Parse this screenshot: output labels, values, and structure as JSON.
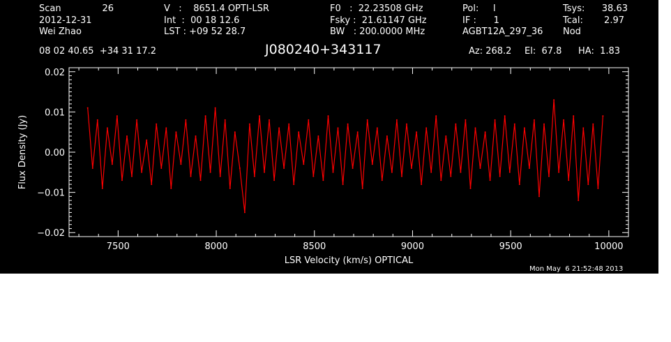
{
  "header": {
    "scan_label": "Scan",
    "scan_number": "26",
    "date": "2012-12-31",
    "observer": "Wei Zhao",
    "velocity": "V   :    8651.4 OPTI-LSR",
    "integration": "Int  :  00 18 12.6",
    "lst": "LST : +09 52 28.7",
    "f0": "F0   :  22.23508 GHz",
    "fsky": "Fsky :  21.61147 GHz",
    "bw": "BW   : 200.0000 MHz",
    "pol": "Pol:     l",
    "if": "IF :      1",
    "project": "AGBT12A_297_36",
    "tsys_label": "Tsys:",
    "tsys_value": "38.63",
    "tcal_label": "Tcal:",
    "tcal_value": "2.97",
    "nod": "Nod",
    "coordinates": "08 02 40.65  +34 31 17.2",
    "source": "J080240+343117",
    "az": "Az: 268.2",
    "el": "El:  67.8",
    "ha": "HA:  1.83"
  },
  "footer": {
    "timestamp": "Mon May  6 21:52:48 2013"
  },
  "colors": {
    "background": "#000000",
    "axes": "#ffffff",
    "trace": "#ff0000"
  },
  "chart_data": {
    "type": "line",
    "title": "J080240+343117",
    "xlabel": "LSR Velocity (km/s) OPTICAL",
    "ylabel": "Flux Density (Jy)",
    "xlim": [
      7250,
      10100
    ],
    "ylim": [
      -0.021,
      0.021
    ],
    "xticks": [
      7500,
      8000,
      8500,
      9000,
      9500,
      10000
    ],
    "xtick_labels": [
      "7500",
      "8000",
      "8500",
      "9000",
      "9500",
      "10000"
    ],
    "yticks": [
      -0.02,
      -0.01,
      0.0,
      0.01,
      0.02
    ],
    "ytick_labels": [
      "−0.02",
      "−0.01",
      "0.00",
      "0.01",
      "0.02"
    ],
    "grid": false,
    "series": [
      {
        "color": "#ff0000",
        "x": [
          7345,
          7370,
          7395,
          7420,
          7445,
          7470,
          7495,
          7520,
          7545,
          7570,
          7595,
          7620,
          7645,
          7670,
          7695,
          7720,
          7745,
          7770,
          7795,
          7820,
          7845,
          7870,
          7895,
          7920,
          7945,
          7970,
          7995,
          8020,
          8045,
          8070,
          8095,
          8120,
          8145,
          8170,
          8195,
          8220,
          8245,
          8270,
          8295,
          8320,
          8345,
          8370,
          8395,
          8420,
          8445,
          8470,
          8495,
          8520,
          8545,
          8570,
          8595,
          8620,
          8645,
          8670,
          8695,
          8720,
          8745,
          8770,
          8795,
          8820,
          8845,
          8870,
          8895,
          8920,
          8945,
          8970,
          8995,
          9020,
          9045,
          9070,
          9095,
          9120,
          9145,
          9170,
          9195,
          9220,
          9245,
          9270,
          9295,
          9320,
          9345,
          9370,
          9395,
          9420,
          9445,
          9470,
          9495,
          9520,
          9545,
          9570,
          9595,
          9620,
          9645,
          9670,
          9695,
          9720,
          9745,
          9770,
          9795,
          9820,
          9845,
          9870,
          9895,
          9920,
          9945,
          9970
        ],
        "y": [
          0.011,
          -0.004,
          0.008,
          -0.009,
          0.006,
          -0.003,
          0.009,
          -0.007,
          0.004,
          -0.006,
          0.008,
          -0.005,
          0.003,
          -0.008,
          0.007,
          -0.004,
          0.006,
          -0.009,
          0.005,
          -0.003,
          0.008,
          -0.006,
          0.004,
          -0.007,
          0.009,
          -0.005,
          0.011,
          -0.006,
          0.008,
          -0.009,
          0.005,
          -0.004,
          -0.015,
          0.007,
          -0.006,
          0.009,
          -0.005,
          0.008,
          -0.007,
          0.006,
          -0.004,
          0.007,
          -0.008,
          0.005,
          -0.003,
          0.008,
          -0.006,
          0.004,
          -0.007,
          0.009,
          -0.005,
          0.006,
          -0.008,
          0.007,
          -0.004,
          0.005,
          -0.009,
          0.008,
          -0.003,
          0.006,
          -0.007,
          0.004,
          -0.005,
          0.008,
          -0.006,
          0.007,
          -0.004,
          0.005,
          -0.008,
          0.006,
          -0.005,
          0.009,
          -0.007,
          0.004,
          -0.006,
          0.007,
          -0.005,
          0.008,
          -0.009,
          0.006,
          -0.004,
          0.005,
          -0.007,
          0.008,
          -0.006,
          0.009,
          -0.005,
          0.007,
          -0.008,
          0.006,
          -0.004,
          0.008,
          -0.011,
          0.007,
          -0.006,
          0.013,
          -0.005,
          0.008,
          -0.007,
          0.009,
          -0.012,
          0.006,
          -0.008,
          0.007,
          -0.009,
          0.009
        ]
      }
    ]
  }
}
